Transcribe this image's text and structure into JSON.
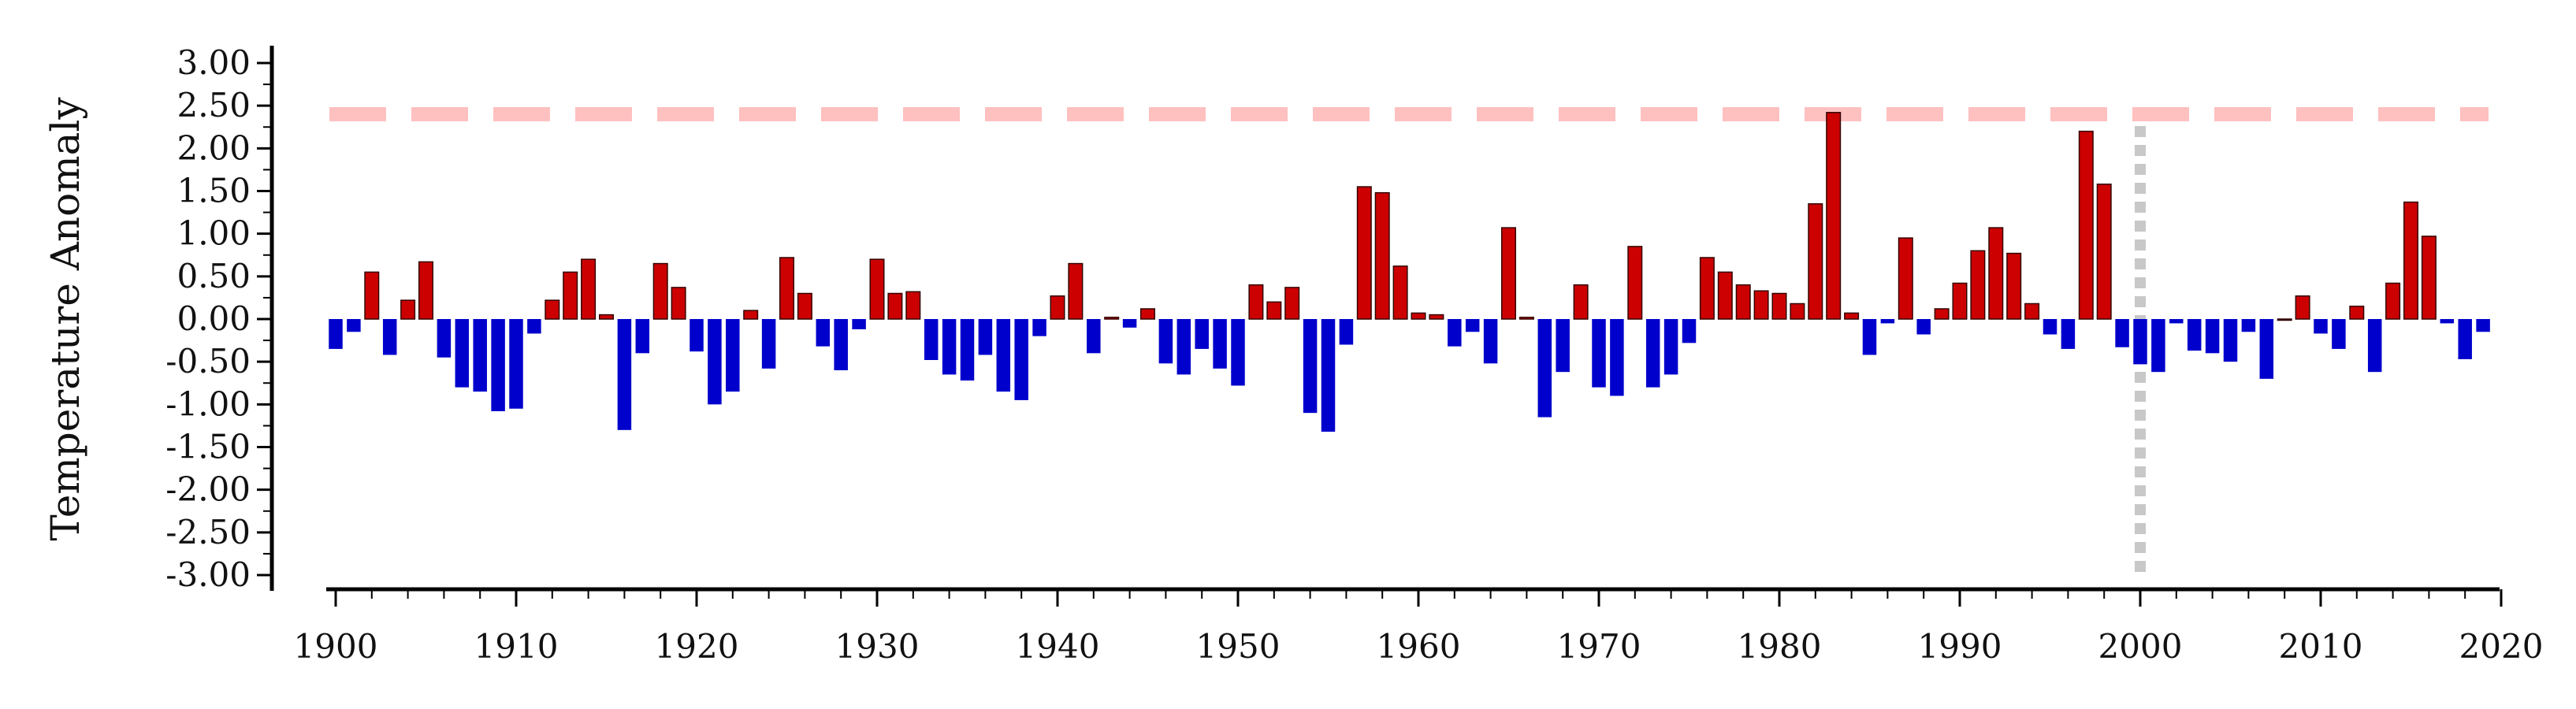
{
  "chart_data": {
    "type": "bar",
    "title": "",
    "xlabel": "",
    "ylabel": "Temperature Anomaly",
    "xlim": [
      1900,
      2020
    ],
    "ylim": [
      -3.0,
      3.0
    ],
    "x_ticks": [
      "1900",
      "1910",
      "1920",
      "1930",
      "1940",
      "1950",
      "1960",
      "1970",
      "1980",
      "1990",
      "2000",
      "2010",
      "2020"
    ],
    "y_ticks": [
      "3.00",
      "2.50",
      "2.00",
      "1.50",
      "1.00",
      "0.50",
      "0.00",
      "-0.50",
      "-1.00",
      "-1.50",
      "-2.00",
      "-2.50",
      "-3.00"
    ],
    "grid": false,
    "positive_color": "#cc0000",
    "negative_color": "#0000cc",
    "reference_line": {
      "value": 2.4,
      "color": "#ffc0c0",
      "style": "dashed"
    },
    "reference_vline": {
      "x": 2000,
      "color": "#c8c8c8",
      "style": "dotted"
    },
    "years": [
      1900,
      1901,
      1902,
      1903,
      1904,
      1905,
      1906,
      1907,
      1908,
      1909,
      1910,
      1911,
      1912,
      1913,
      1914,
      1915,
      1916,
      1917,
      1918,
      1919,
      1920,
      1921,
      1922,
      1923,
      1924,
      1925,
      1926,
      1927,
      1928,
      1929,
      1930,
      1931,
      1932,
      1933,
      1934,
      1935,
      1936,
      1937,
      1938,
      1939,
      1940,
      1941,
      1942,
      1943,
      1944,
      1945,
      1946,
      1947,
      1948,
      1949,
      1950,
      1951,
      1952,
      1953,
      1954,
      1955,
      1956,
      1957,
      1958,
      1959,
      1960,
      1961,
      1962,
      1963,
      1964,
      1965,
      1966,
      1967,
      1968,
      1969,
      1970,
      1971,
      1972,
      1973,
      1974,
      1975,
      1976,
      1977,
      1978,
      1979,
      1980,
      1981,
      1982,
      1983,
      1984,
      1985,
      1986,
      1987,
      1988,
      1989,
      1990,
      1991,
      1992,
      1993,
      1994,
      1995,
      1996,
      1997,
      1998,
      1999,
      2000,
      2001,
      2002,
      2003,
      2004,
      2005,
      2006,
      2007,
      2008,
      2009,
      2010,
      2011,
      2012,
      2013,
      2014,
      2015,
      2016,
      2017,
      2018,
      2019
    ],
    "values": [
      -0.35,
      -0.15,
      0.55,
      -0.42,
      0.22,
      0.67,
      -0.45,
      -0.8,
      -0.85,
      -1.08,
      -1.05,
      -0.17,
      0.22,
      0.55,
      0.7,
      0.05,
      -1.3,
      -0.4,
      0.65,
      0.37,
      -0.38,
      -1.0,
      -0.85,
      0.1,
      -0.58,
      0.72,
      0.3,
      -0.32,
      -0.6,
      -0.12,
      0.7,
      0.3,
      0.32,
      -0.48,
      -0.65,
      -0.72,
      -0.42,
      -0.85,
      -0.95,
      -0.2,
      0.27,
      0.65,
      -0.4,
      0.02,
      -0.1,
      0.12,
      -0.52,
      -0.65,
      -0.35,
      -0.58,
      -0.78,
      0.4,
      0.2,
      0.37,
      -1.1,
      -1.32,
      -0.3,
      1.55,
      1.48,
      0.62,
      0.07,
      0.05,
      -0.32,
      -0.15,
      -0.52,
      1.07,
      0.02,
      -1.15,
      -0.62,
      0.4,
      -0.8,
      -0.9,
      0.85,
      -0.8,
      -0.65,
      -0.28,
      0.72,
      0.55,
      0.4,
      0.33,
      0.3,
      0.18,
      1.35,
      2.42,
      0.07,
      -0.42,
      -0.05,
      0.95,
      -0.18,
      0.12,
      0.42,
      0.8,
      1.07,
      0.77,
      0.18,
      -0.18,
      -0.35,
      2.2,
      1.58,
      -0.33,
      -0.53,
      -0.62,
      -0.05,
      -0.37,
      -0.4,
      -0.5,
      -0.15,
      -0.7,
      0.0,
      0.27,
      -0.17,
      -0.35,
      0.15,
      -0.62,
      0.42,
      1.37,
      0.97,
      -0.05,
      -0.47,
      -0.15
    ]
  }
}
